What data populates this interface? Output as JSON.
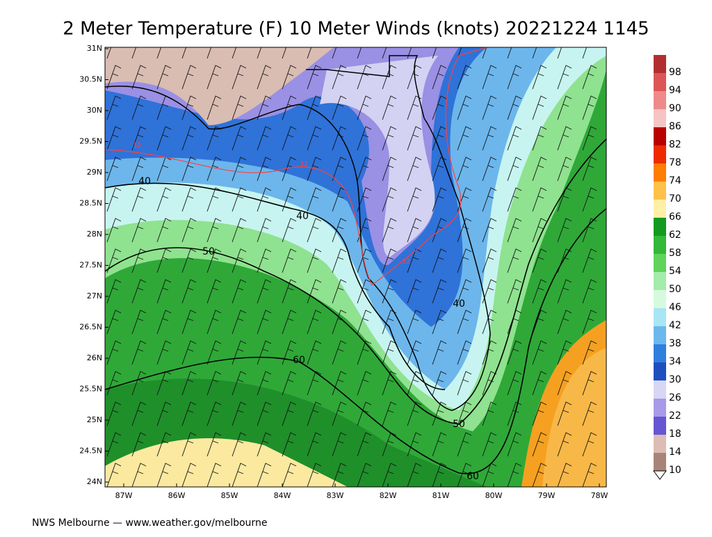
{
  "title": "2 Meter Temperature (F) 10 Meter Winds (knots) 20221224 1145",
  "footer": "NWS Melbourne — www.weather.gov/melbourne",
  "map": {
    "lat_labels": [
      "31N",
      "30.5N",
      "30N",
      "29.5N",
      "29N",
      "28.5N",
      "28N",
      "27.5N",
      "27N",
      "26.5N",
      "26N",
      "25.5N",
      "25N",
      "24.5N",
      "24N"
    ],
    "lon_labels": [
      "87W",
      "86W",
      "85W",
      "84W",
      "83W",
      "82W",
      "81W",
      "80W",
      "79W",
      "78W"
    ],
    "contour_labels": [
      "40",
      "40",
      "50",
      "60",
      "40",
      "50",
      "60",
      "32",
      "32",
      "32"
    ]
  },
  "colorbar": {
    "labels": [
      "98",
      "94",
      "90",
      "86",
      "82",
      "78",
      "74",
      "70",
      "66",
      "62",
      "58",
      "54",
      "50",
      "46",
      "42",
      "38",
      "34",
      "30",
      "26",
      "22",
      "18",
      "14",
      "10"
    ],
    "colors": [
      "#b22f2f",
      "#dd5555",
      "#ee8a8a",
      "#f6c4c4",
      "#b80000",
      "#ee2a00",
      "#ff7d00",
      "#ffc14a",
      "#fff0a6",
      "#139a20",
      "#33b838",
      "#5fd35c",
      "#a4ecaa",
      "#d5fadd",
      "#a8e6f6",
      "#6cb8ec",
      "#2f7fdd",
      "#1f4fbf",
      "#d8d6f4",
      "#a89ae8",
      "#6656d2",
      "#dcbcb4",
      "#a88478"
    ]
  }
}
